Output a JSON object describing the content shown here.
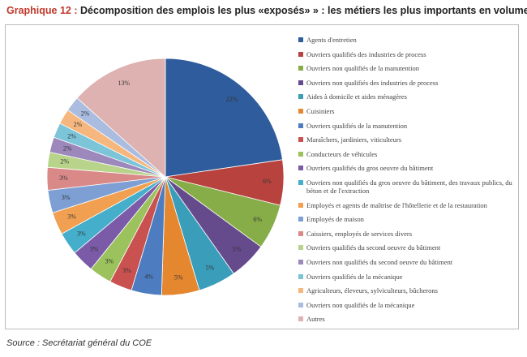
{
  "chart_data": {
    "type": "pie",
    "title_label": "Graphique 12 :",
    "title": "Décomposition des emplois les plus «exposés» » : les métiers les plus importants en volume",
    "source": "Source : Secrétariat général du COE",
    "categories": [
      "Agents d'entretien",
      "Ouvriers qualifiés des industries de process",
      "Ouvriers non qualifiés de la manutention",
      "Ouvriers non qualifiés des industries de process",
      "Aides à domicile et aides ménagères",
      "Cuisiniers",
      "Ouvriers qualifiés de la manutention",
      "Maraîchers, jardiniers, viticulteurs",
      "Conducteurs de véhicules",
      "Ouvriers qualifiés du gros oeuvre du bâtiment",
      "Ouvriers non qualifiés du gros oeuvre du bâtiment, des travaux publics, du béton et de l'extraction",
      "Employés et agents de maîtrise de l'hôtellerie et de la restauration",
      "Employés de maison",
      "Caissiers, employés de services divers",
      "Ouvriers qualifiés du second oeuvre du bâtiment",
      "Ouvriers non qualifiés du second oeuvre du bâtiment",
      "Ouvriers qualifiés de la mécanique",
      "Agriculteurs, éleveurs, sylviculteurs, bûcherons",
      "Ouvriers non qualifiés de la mécanique",
      "Autres"
    ],
    "values": [
      22,
      6,
      6,
      5,
      5,
      5,
      4,
      3,
      3,
      3,
      3,
      3,
      3,
      3,
      2,
      2,
      2,
      2,
      2,
      13
    ],
    "value_labels": [
      "22%",
      "6%",
      "6%",
      "5%",
      "5%",
      "5%",
      "4%",
      "3%",
      "3%",
      "3%",
      "3%",
      "3%",
      "3%",
      "3%",
      "2%",
      "2%",
      "2%",
      "2%",
      "2%",
      "13%"
    ],
    "colors": [
      "#2f5c9c",
      "#b8433e",
      "#86ad48",
      "#654a8c",
      "#3a9dba",
      "#e4872f",
      "#4d7cc0",
      "#c9514f",
      "#9bc25c",
      "#7b5aa8",
      "#45aecb",
      "#f0a050",
      "#7d9fd4",
      "#d98a88",
      "#b8d48a",
      "#9d88bb",
      "#7cc4d8",
      "#f5b77e",
      "#aabde0",
      "#ddb2b0"
    ]
  }
}
